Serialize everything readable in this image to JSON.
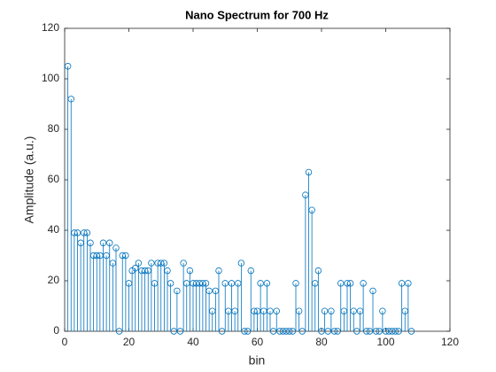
{
  "chart_data": {
    "type": "stem",
    "title": "Nano Spectrum for 700 Hz",
    "xlabel": "bin",
    "ylabel": "Amplitude (a.u.)",
    "x": [
      1,
      2,
      3,
      4,
      5,
      6,
      7,
      8,
      9,
      10,
      11,
      12,
      13,
      14,
      15,
      16,
      17,
      18,
      19,
      20,
      21,
      22,
      23,
      24,
      25,
      26,
      27,
      28,
      29,
      30,
      31,
      32,
      33,
      34,
      35,
      36,
      37,
      38,
      39,
      40,
      41,
      42,
      43,
      44,
      45,
      46,
      47,
      48,
      49,
      50,
      51,
      52,
      53,
      54,
      55,
      56,
      57,
      58,
      59,
      60,
      61,
      62,
      63,
      64,
      65,
      66,
      67,
      68,
      69,
      70,
      71,
      72,
      73,
      74,
      75,
      76,
      77,
      78,
      79,
      80,
      81,
      82,
      83,
      84,
      85,
      86,
      87,
      88,
      89,
      90,
      91,
      92,
      93,
      94,
      95,
      96,
      97,
      98,
      99,
      100,
      101,
      102,
      103,
      104,
      105,
      106,
      107,
      108
    ],
    "values": [
      105,
      92,
      39,
      39,
      35,
      39,
      39,
      35,
      30,
      30,
      30,
      35,
      30,
      35,
      27,
      33,
      0,
      30,
      30,
      19,
      24,
      25,
      27,
      24,
      24,
      24,
      27,
      19,
      27,
      27,
      27,
      24,
      19,
      0,
      16,
      0,
      27,
      19,
      24,
      19,
      19,
      19,
      19,
      19,
      16,
      8,
      16,
      24,
      0,
      19,
      8,
      19,
      8,
      19,
      27,
      0,
      0,
      24,
      8,
      8,
      19,
      8,
      19,
      8,
      0,
      8,
      0,
      0,
      0,
      0,
      0,
      19,
      8,
      0,
      54,
      63,
      48,
      19,
      24,
      0,
      8,
      0,
      8,
      0,
      0,
      19,
      8,
      19,
      19,
      8,
      0,
      8,
      19,
      0,
      0,
      16,
      0,
      0,
      8,
      0,
      0,
      0,
      0,
      0,
      19,
      8,
      19,
      0
    ],
    "color": "#0072bd",
    "xlim": [
      0,
      120
    ],
    "ylim": [
      0,
      120
    ],
    "xticks": [
      0,
      20,
      40,
      60,
      80,
      100,
      120
    ],
    "yticks": [
      0,
      20,
      40,
      60,
      80,
      100,
      120
    ]
  }
}
